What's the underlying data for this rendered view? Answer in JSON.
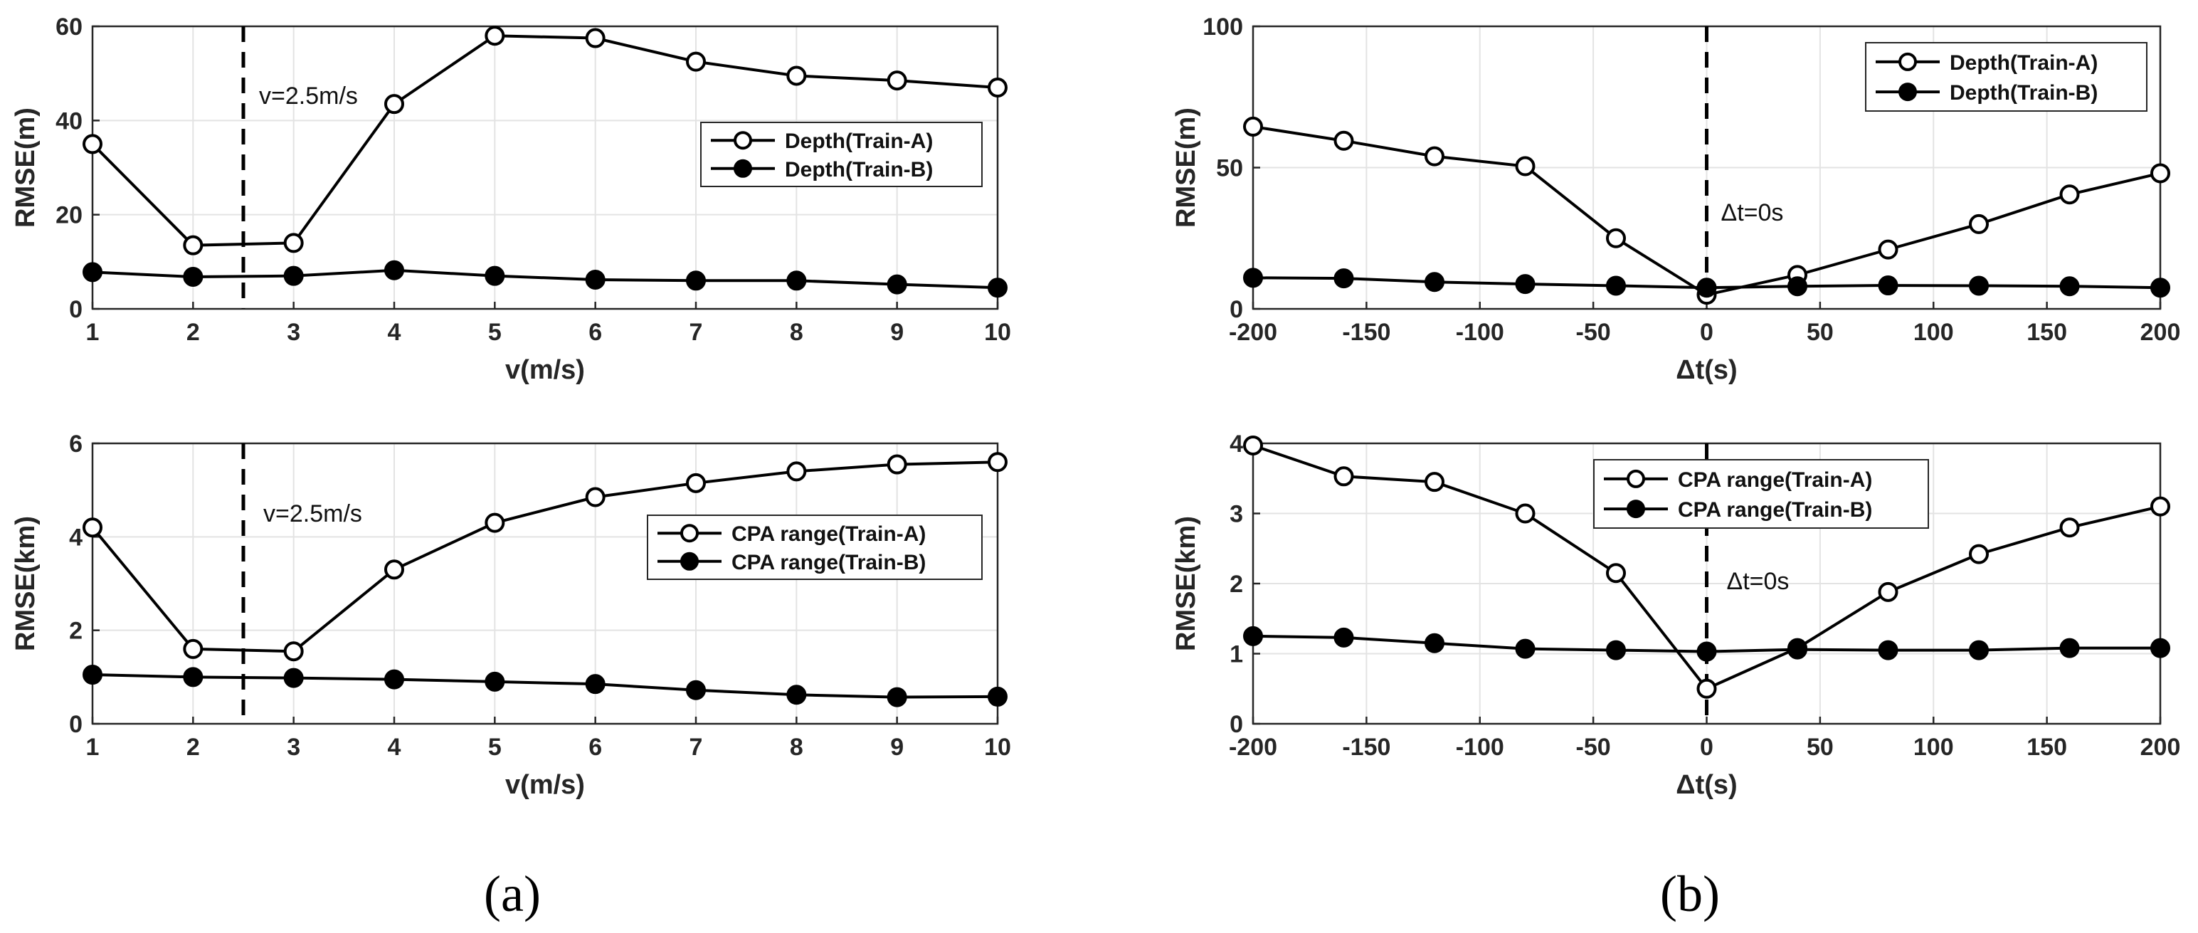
{
  "panel_labels": [
    "(a)",
    "(b)"
  ],
  "chart_data": [
    {
      "type": "line",
      "panel": "a-top",
      "x": [
        1,
        2,
        3,
        4,
        5,
        6,
        7,
        8,
        9,
        10
      ],
      "xlim": [
        1,
        10
      ],
      "xticks": [
        "1",
        "2",
        "3",
        "4",
        "5",
        "6",
        "7",
        "8",
        "9",
        "10"
      ],
      "ylim": [
        0,
        60
      ],
      "yticks": [
        "0",
        "20",
        "40",
        "60"
      ],
      "xlabel": "v(m/s)",
      "ylabel": "RMSE(m)",
      "grid": true,
      "legend_position": "center-right",
      "series": [
        {
          "name": "Depth(Train-A)",
          "marker": "open-circle",
          "values": [
            35,
            13.5,
            14,
            43.5,
            58,
            57.5,
            52.5,
            49.5,
            48.5,
            47
          ]
        },
        {
          "name": "Depth(Train-B)",
          "marker": "filled-circle",
          "values": [
            7.8,
            6.8,
            7,
            8.2,
            7,
            6.2,
            6,
            6,
            5.2,
            4.5
          ]
        }
      ],
      "reference_line": {
        "x": 2.5,
        "label": "v=2.5m/s"
      }
    },
    {
      "type": "line",
      "panel": "a-bottom",
      "x": [
        1,
        2,
        3,
        4,
        5,
        6,
        7,
        8,
        9,
        10
      ],
      "xlim": [
        1,
        10
      ],
      "xticks": [
        "1",
        "2",
        "3",
        "4",
        "5",
        "6",
        "7",
        "8",
        "9",
        "10"
      ],
      "ylim": [
        0,
        6
      ],
      "yticks": [
        "0",
        "2",
        "4",
        "6"
      ],
      "xlabel": "v(m/s)",
      "ylabel": "RMSE(km)",
      "grid": true,
      "legend_position": "center-right",
      "series": [
        {
          "name": "CPA range(Train-A)",
          "marker": "open-circle",
          "values": [
            4.2,
            1.6,
            1.55,
            3.3,
            4.3,
            4.85,
            5.15,
            5.4,
            5.55,
            5.6
          ]
        },
        {
          "name": "CPA range(Train-B)",
          "marker": "filled-circle",
          "values": [
            1.05,
            1.0,
            0.98,
            0.95,
            0.9,
            0.85,
            0.72,
            0.62,
            0.57,
            0.58
          ]
        }
      ],
      "reference_line": {
        "x": 2.5,
        "label": "v=2.5m/s"
      }
    },
    {
      "type": "line",
      "panel": "b-top",
      "x": [
        -200,
        -160,
        -120,
        -80,
        -40,
        0,
        40,
        80,
        120,
        160,
        200
      ],
      "xlim": [
        -200,
        200
      ],
      "xticks": [
        "-200",
        "-150",
        "-100",
        "-50",
        "0",
        "50",
        "100",
        "150",
        "200"
      ],
      "ylim": [
        0,
        100
      ],
      "yticks": [
        "0",
        "50",
        "100"
      ],
      "xlabel": "Δt(s)",
      "ylabel": "RMSE(m)",
      "grid": true,
      "legend_position": "top-right",
      "series": [
        {
          "name": "Depth(Train-A)",
          "marker": "open-circle",
          "values": [
            64.5,
            59.5,
            54,
            50.5,
            25,
            5,
            12,
            21,
            30,
            40.5,
            48
          ]
        },
        {
          "name": "Depth(Train-B)",
          "marker": "filled-circle",
          "values": [
            11,
            10.8,
            9.5,
            8.8,
            8.2,
            7.5,
            8,
            8.3,
            8.2,
            8,
            7.5
          ]
        }
      ],
      "reference_line": {
        "x": 0,
        "label": "Δt=0s"
      }
    },
    {
      "type": "line",
      "panel": "b-bottom",
      "x": [
        -200,
        -160,
        -120,
        -80,
        -40,
        0,
        40,
        80,
        120,
        160,
        200
      ],
      "xlim": [
        -200,
        200
      ],
      "xticks": [
        "-200",
        "-150",
        "-100",
        "-50",
        "0",
        "50",
        "100",
        "150",
        "200"
      ],
      "ylim": [
        0,
        4
      ],
      "yticks": [
        "0",
        "1",
        "2",
        "3",
        "4"
      ],
      "xlabel": "Δt(s)",
      "ylabel": "RMSE(km)",
      "grid": true,
      "legend_position": "top-center",
      "series": [
        {
          "name": "CPA range(Train-A)",
          "marker": "open-circle",
          "values": [
            3.97,
            3.53,
            3.45,
            3.0,
            2.15,
            0.5,
            1.08,
            1.88,
            2.42,
            2.8,
            3.1
          ]
        },
        {
          "name": "CPA range(Train-B)",
          "marker": "filled-circle",
          "values": [
            1.25,
            1.23,
            1.15,
            1.07,
            1.05,
            1.03,
            1.06,
            1.05,
            1.05,
            1.08,
            1.08
          ]
        }
      ],
      "reference_line": {
        "x": 0,
        "label": "Δt=0s"
      }
    }
  ]
}
